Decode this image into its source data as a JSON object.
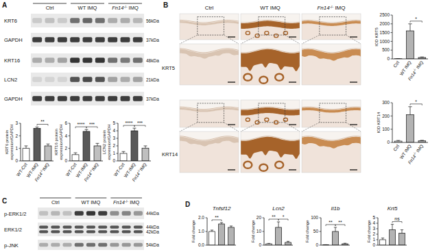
{
  "panel_labels": [
    "A",
    "B",
    "C",
    "D"
  ],
  "groups": [
    "Ctrl",
    "WT IMQ",
    "Fn14-/- IMQ"
  ],
  "blots_A": {
    "rows": [
      {
        "label": "KRT6",
        "kda": [
          "56kDa"
        ],
        "bands": [
          0.15,
          0.2,
          0.15,
          0.6,
          0.65,
          0.6,
          0.3,
          0.3,
          0.25
        ]
      },
      {
        "label": "GAPDH",
        "kda": [
          "37kDa"
        ],
        "bands": [
          0.85,
          0.85,
          0.85,
          0.85,
          0.85,
          0.85,
          0.85,
          0.85,
          0.85
        ]
      },
      {
        "label": "KRT16",
        "kda": [
          "48kDa"
        ],
        "bands": [
          0.3,
          0.3,
          0.35,
          0.9,
          0.9,
          0.9,
          0.6,
          0.55,
          0.6
        ]
      },
      {
        "label": "LCN2",
        "kda": [
          "21kDa"
        ],
        "bands": [
          0.1,
          0.1,
          0.1,
          0.75,
          0.8,
          0.75,
          0.35,
          0.3,
          0.35
        ]
      },
      {
        "label": "GAPDH",
        "kda": [
          "37kDa"
        ],
        "bands": [
          0.85,
          0.85,
          0.85,
          0.85,
          0.85,
          0.85,
          0.85,
          0.85,
          0.85
        ]
      }
    ]
  },
  "ihc_B": {
    "rows": [
      "KRT5",
      "KRT14"
    ]
  },
  "blots_C": {
    "rows": [
      {
        "label": "p-ERK1/2",
        "kda": [
          "44kDa"
        ],
        "bands": [
          0.2,
          0.25,
          0.2,
          0.85,
          0.9,
          0.85,
          0.45,
          0.5,
          0.4
        ]
      },
      {
        "label": "ERK1/2",
        "kda": [
          "44kDa",
          "42kDa"
        ],
        "bands": [
          0.75,
          0.75,
          0.75,
          0.75,
          0.75,
          0.75,
          0.75,
          0.75,
          0.75
        ]
      },
      {
        "label": "p-JNK",
        "kda": [
          "54kDa"
        ],
        "bands": [
          0.3,
          0.3,
          0.3,
          0.6,
          0.6,
          0.6,
          0.4,
          0.4,
          0.4
        ]
      }
    ]
  },
  "chart_data": [
    {
      "type": "bar",
      "y_label": [
        "KRT6 protein",
        "expression/GAPDH"
      ],
      "categories": [
        "WT-Ctrl",
        "WT-IMQ",
        "Fn14-/-IMQ"
      ],
      "values": [
        1.0,
        2.6,
        1.2
      ],
      "errors": [
        0.2,
        0.1,
        0.15
      ],
      "colors": [
        "#ffffff",
        "#595959",
        "#bfbfbf"
      ],
      "ylim": [
        0,
        3
      ],
      "yticks": [
        0,
        1,
        2,
        3
      ],
      "significance": [
        {
          "text": "**",
          "pair": [
            1,
            2
          ]
        }
      ]
    },
    {
      "type": "bar",
      "y_label": [
        "KRT16 protein",
        "expression/GAPDH"
      ],
      "categories": [
        "WT-Ctrl",
        "WT-IMQ",
        "Fn14-/-IMQ"
      ],
      "values": [
        1.0,
        4.7,
        2.4
      ],
      "errors": [
        0.3,
        0.3,
        0.4
      ],
      "colors": [
        "#ffffff",
        "#595959",
        "#bfbfbf"
      ],
      "ylim": [
        0,
        6
      ],
      "yticks": [
        0,
        2,
        4,
        6
      ],
      "significance": [
        {
          "text": "****",
          "pair": [
            0,
            1
          ]
        },
        {
          "text": "***",
          "pair": [
            1,
            2
          ]
        }
      ]
    },
    {
      "type": "bar",
      "y_label": [
        "LCN2 protein",
        "expression/GAPDH"
      ],
      "categories": [
        "WT-Ctrl",
        "WT-IMQ",
        "Fn14-/-IMQ"
      ],
      "values": [
        1.0,
        4.0,
        1.7
      ],
      "errors": [
        0.25,
        0.35,
        0.3
      ],
      "colors": [
        "#ffffff",
        "#595959",
        "#bfbfbf"
      ],
      "ylim": [
        0,
        5
      ],
      "yticks": [
        0,
        1,
        2,
        3,
        4,
        5
      ],
      "significance": [
        {
          "text": "****",
          "pair": [
            0,
            1
          ]
        },
        {
          "text": "***",
          "pair": [
            1,
            2
          ]
        }
      ]
    },
    {
      "type": "bar",
      "y_label": [
        "IOD KRT5"
      ],
      "categories": [
        "Ctrl",
        "WT IMQ",
        "Fn14-/- IMQ"
      ],
      "values": [
        10,
        1600,
        80
      ],
      "errors": [
        5,
        400,
        30
      ],
      "colors": [
        "#ffffff",
        "#b3b3b3",
        "#b3b3b3"
      ],
      "ylim": [
        0,
        2500
      ],
      "yticks": [
        0,
        500,
        1000,
        1500,
        2000,
        2500
      ],
      "significance": [
        {
          "text": "*",
          "pair": [
            1,
            2
          ]
        }
      ]
    },
    {
      "type": "bar",
      "y_label": [
        "IOD KRT14"
      ],
      "categories": [
        "Ctrl",
        "WT IMQ",
        "Fn14-/- IMQ"
      ],
      "values": [
        10,
        210,
        12
      ],
      "errors": [
        5,
        60,
        4
      ],
      "colors": [
        "#ffffff",
        "#b3b3b3",
        "#b3b3b3"
      ],
      "ylim": [
        0,
        300
      ],
      "yticks": [
        0,
        100,
        200,
        300
      ],
      "significance": [
        {
          "text": "*",
          "pair": [
            1,
            2
          ]
        }
      ]
    },
    {
      "type": "bar",
      "title": "Tnfsf12",
      "y_label": [
        "Fold change"
      ],
      "categories": [
        null,
        null,
        null
      ],
      "tick_labels": "y",
      "values": [
        1.0,
        1.55,
        1.3
      ],
      "errors": [
        0.1,
        0.1,
        0.1
      ],
      "colors": [
        "#ffffff",
        "#b3b3b3",
        "#b3b3b3"
      ],
      "ylim": [
        0,
        2
      ],
      "yticks": [
        {
          "value": 0,
          "label": "0.0"
        },
        {
          "value": 1,
          "label": "1.0"
        },
        {
          "value": 2,
          "label": "2.0"
        }
      ],
      "significance": [
        {
          "text": "**",
          "pair": [
            0,
            1
          ]
        }
      ]
    },
    {
      "type": "bar",
      "title": "Lcn2",
      "y_label": [
        "Fold change"
      ],
      "categories": [
        null,
        null,
        null
      ],
      "tick_labels": "y",
      "values": [
        1,
        13,
        2
      ],
      "errors": [
        0.3,
        4,
        0.8
      ],
      "colors": [
        "#ffffff",
        "#b3b3b3",
        "#b3b3b3"
      ],
      "ylim": [
        0,
        20
      ],
      "yticks": [
        0,
        10,
        20
      ],
      "significance": [
        {
          "text": "**",
          "pair": [
            0,
            1
          ]
        },
        {
          "text": "*",
          "pair": [
            1,
            2
          ]
        }
      ]
    },
    {
      "type": "bar",
      "title": "Il1b",
      "y_label": [
        "Fold change"
      ],
      "categories": [
        null,
        null,
        null
      ],
      "tick_labels": "y",
      "values": [
        1,
        50,
        5
      ],
      "errors": [
        0.5,
        15,
        2
      ],
      "colors": [
        "#ffffff",
        "#b3b3b3",
        "#b3b3b3"
      ],
      "ylim": [
        0,
        100
      ],
      "yticks": [
        0,
        50,
        100
      ],
      "significance": [
        {
          "text": "**",
          "pair": [
            0,
            1
          ]
        },
        {
          "text": "**",
          "pair": [
            1,
            2
          ]
        }
      ]
    },
    {
      "type": "bar",
      "title": "Krt5",
      "y_label": [
        "Fold change"
      ],
      "categories": [
        null,
        null,
        null
      ],
      "tick_labels": "y",
      "values": [
        1,
        2.8,
        2.2
      ],
      "errors": [
        0.3,
        1.0,
        0.6
      ],
      "colors": [
        "#ffffff",
        "#b3b3b3",
        "#b3b3b3"
      ],
      "ylim": [
        0,
        5
      ],
      "yticks": [
        0,
        1,
        2,
        3,
        4,
        5
      ],
      "significance": [
        {
          "text": "ns",
          "pair": [
            1,
            2
          ]
        }
      ]
    }
  ]
}
